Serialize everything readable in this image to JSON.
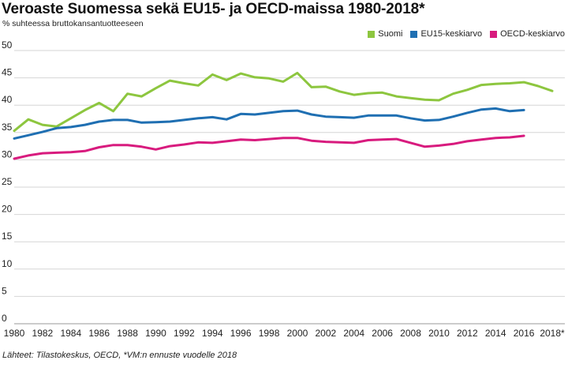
{
  "chart_data": {
    "type": "line",
    "title": "Veroaste Suomessa sekä EU15- ja OECD-maissa 1980-2018*",
    "subtitle": "% suhteessa bruttokansantuotteeseen",
    "source": "Lähteet: Tilastokeskus, OECD, *VM:n ennuste vuodelle 2018",
    "x_tick_labels": [
      "1980",
      "1982",
      "1984",
      "1986",
      "1988",
      "1990",
      "1992",
      "1994",
      "1996",
      "1998",
      "2000",
      "2002",
      "2004",
      "2006",
      "2008",
      "2010",
      "2012",
      "2014",
      "2016",
      "2018*"
    ],
    "y_ticks": [
      0,
      5,
      10,
      15,
      20,
      25,
      30,
      35,
      40,
      45,
      50
    ],
    "xlim": [
      1980,
      2018
    ],
    "ylim": [
      0,
      50
    ],
    "grid": true,
    "legend_position": "top-right",
    "series": [
      {
        "name": "Suomi",
        "color": "#8dc63f",
        "x": [
          1980,
          1981,
          1982,
          1983,
          1984,
          1985,
          1986,
          1987,
          1988,
          1989,
          1990,
          1991,
          1992,
          1993,
          1994,
          1995,
          1996,
          1997,
          1998,
          1999,
          2000,
          2001,
          2002,
          2003,
          2004,
          2005,
          2006,
          2007,
          2008,
          2009,
          2010,
          2011,
          2012,
          2013,
          2014,
          2015,
          2016,
          2017,
          2018
        ],
        "values": [
          35.3,
          37.4,
          36.4,
          36.1,
          37.6,
          39.1,
          40.4,
          38.9,
          42.1,
          41.6,
          43.1,
          44.5,
          44.0,
          43.6,
          45.6,
          44.6,
          45.8,
          45.1,
          44.9,
          44.3,
          45.9,
          43.3,
          43.4,
          42.5,
          41.9,
          42.2,
          42.3,
          41.6,
          41.3,
          41.0,
          40.9,
          42.1,
          42.8,
          43.7,
          43.9,
          44.0,
          44.2,
          43.5,
          42.6
        ]
      },
      {
        "name": "EU15-keskiarvo",
        "color": "#1f6fb2",
        "x": [
          1980,
          1981,
          1982,
          1983,
          1984,
          1985,
          1986,
          1987,
          1988,
          1989,
          1990,
          1991,
          1992,
          1993,
          1994,
          1995,
          1996,
          1997,
          1998,
          1999,
          2000,
          2001,
          2002,
          2003,
          2004,
          2005,
          2006,
          2007,
          2008,
          2009,
          2010,
          2011,
          2012,
          2013,
          2014,
          2015,
          2016
        ],
        "values": [
          33.9,
          34.5,
          35.1,
          35.8,
          36.0,
          36.4,
          37.0,
          37.3,
          37.3,
          36.8,
          36.9,
          37.0,
          37.3,
          37.6,
          37.8,
          37.4,
          38.4,
          38.3,
          38.6,
          38.9,
          39.0,
          38.3,
          37.9,
          37.8,
          37.7,
          38.1,
          38.1,
          38.1,
          37.6,
          37.2,
          37.3,
          37.9,
          38.6,
          39.2,
          39.4,
          38.9,
          39.1
        ]
      },
      {
        "name": "OECD-keskiarvo",
        "color": "#d81b7e",
        "x": [
          1980,
          1981,
          1982,
          1983,
          1984,
          1985,
          1986,
          1987,
          1988,
          1989,
          1990,
          1991,
          1992,
          1993,
          1994,
          1995,
          1996,
          1997,
          1998,
          1999,
          2000,
          2001,
          2002,
          2003,
          2004,
          2005,
          2006,
          2007,
          2008,
          2009,
          2010,
          2011,
          2012,
          2013,
          2014,
          2015,
          2016
        ],
        "values": [
          30.2,
          30.8,
          31.2,
          31.3,
          31.4,
          31.6,
          32.3,
          32.7,
          32.7,
          32.4,
          31.9,
          32.5,
          32.8,
          33.2,
          33.1,
          33.4,
          33.7,
          33.6,
          33.8,
          34.0,
          34.0,
          33.5,
          33.3,
          33.2,
          33.1,
          33.6,
          33.7,
          33.8,
          33.1,
          32.4,
          32.6,
          32.9,
          33.4,
          33.7,
          34.0,
          34.1,
          34.4
        ]
      }
    ]
  }
}
